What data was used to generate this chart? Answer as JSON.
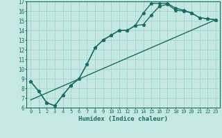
{
  "xlabel": "Humidex (Indice chaleur)",
  "xlim": [
    -0.5,
    23.5
  ],
  "ylim": [
    6,
    17
  ],
  "xticks": [
    0,
    1,
    2,
    3,
    4,
    5,
    6,
    7,
    8,
    9,
    10,
    11,
    12,
    13,
    14,
    15,
    16,
    17,
    18,
    19,
    20,
    21,
    22,
    23
  ],
  "yticks": [
    6,
    7,
    8,
    9,
    10,
    11,
    12,
    13,
    14,
    15,
    16,
    17
  ],
  "background_color": "#c5e8e5",
  "grid_color": "#9fcfcc",
  "line_color": "#1a6b60",
  "line1_x": [
    0,
    1,
    2,
    3,
    4,
    5,
    6,
    7,
    8,
    9,
    10,
    11,
    12,
    13,
    14,
    15,
    16,
    17,
    18,
    19,
    20,
    21,
    22,
    23
  ],
  "line1_y": [
    8.7,
    7.7,
    6.5,
    6.2,
    7.3,
    8.3,
    9.0,
    10.5,
    12.2,
    13.0,
    13.5,
    14.0,
    14.0,
    14.5,
    14.6,
    15.6,
    16.5,
    16.7,
    16.1,
    16.0,
    15.8,
    15.3,
    15.2,
    15.1
  ],
  "line2_x": [
    0,
    1,
    2,
    3,
    4,
    5,
    6,
    7,
    8,
    9,
    10,
    11,
    12,
    13,
    14,
    15,
    16,
    17,
    18,
    19,
    20,
    21,
    22,
    23
  ],
  "line2_y": [
    8.7,
    7.7,
    6.5,
    6.2,
    7.3,
    8.3,
    9.0,
    10.5,
    12.2,
    13.0,
    13.5,
    14.0,
    14.0,
    14.5,
    15.8,
    16.8,
    16.8,
    16.8,
    16.3,
    16.1,
    15.8,
    15.3,
    15.2,
    15.1
  ],
  "line3_x": [
    0,
    23
  ],
  "line3_y": [
    6.8,
    15.1
  ],
  "marker": "*",
  "markersize": 3.5,
  "linewidth": 1.0
}
